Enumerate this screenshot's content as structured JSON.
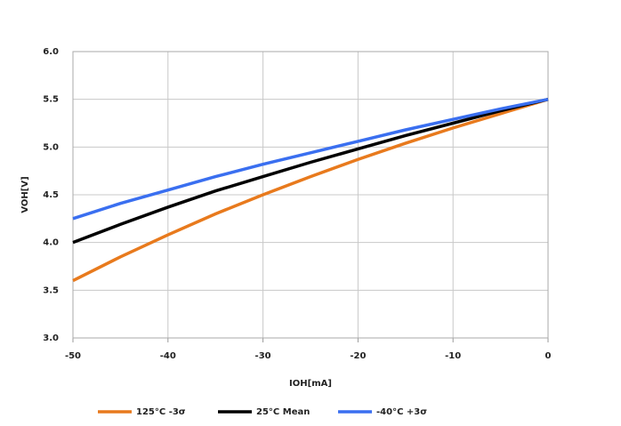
{
  "chart_data": {
    "type": "line",
    "x_label": "IOH[mA]",
    "y_label": "VOH[V]",
    "x": [
      -50,
      -45,
      -40,
      -35,
      -30,
      -25,
      -20,
      -15,
      -10,
      -5,
      0
    ],
    "series": [
      {
        "name": "125°C -3σ",
        "color": "#e87a1d",
        "values": [
          3.6,
          3.85,
          4.08,
          4.3,
          4.5,
          4.69,
          4.87,
          5.04,
          5.2,
          5.35,
          5.5
        ]
      },
      {
        "name": "25°C Mean",
        "color": "#000000",
        "values": [
          4.0,
          4.19,
          4.37,
          4.54,
          4.69,
          4.84,
          4.98,
          5.12,
          5.25,
          5.38,
          5.5
        ]
      },
      {
        "name": "-40°C +3σ",
        "color": "#3a6ff0",
        "values": [
          4.25,
          4.41,
          4.55,
          4.69,
          4.82,
          4.94,
          5.06,
          5.18,
          5.29,
          5.4,
          5.5
        ]
      }
    ],
    "xlim": [
      -50,
      0
    ],
    "xticks": [
      -50,
      -40,
      -30,
      -20,
      -10,
      0
    ],
    "ylim": [
      3,
      6
    ],
    "yticks": [
      {
        "value": 3,
        "label": "3.0"
      },
      3.5,
      {
        "value": 4,
        "label": "4.0"
      },
      4.5,
      {
        "value": 5,
        "label": "5.0"
      },
      5.5,
      {
        "value": 6,
        "label": "6.0"
      }
    ],
    "grid": true,
    "legend": "bottom"
  }
}
